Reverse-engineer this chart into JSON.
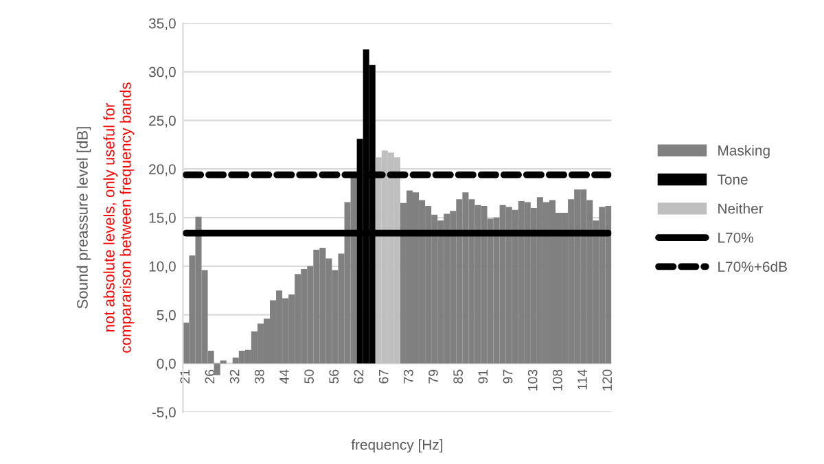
{
  "chart_data": {
    "type": "bar",
    "xlabel": "frequency [Hz]",
    "ylabel": "Sound preassure level [dB]",
    "annotations": [
      "not absolute levels, only useful for\ncompararison between frequency bands"
    ],
    "categories": [
      "21",
      null,
      null,
      null,
      "26",
      null,
      null,
      null,
      "32",
      null,
      null,
      null,
      "38",
      null,
      null,
      null,
      "44",
      null,
      null,
      null,
      "50",
      null,
      null,
      null,
      "56",
      null,
      null,
      null,
      "62",
      null,
      null,
      null,
      "67",
      null,
      null,
      null,
      "73",
      null,
      null,
      null,
      "79",
      null,
      null,
      null,
      "85",
      null,
      null,
      null,
      "91",
      null,
      null,
      null,
      "97",
      null,
      null,
      null,
      "103",
      null,
      null,
      null,
      "108",
      null,
      null,
      null,
      "114",
      null,
      null,
      null,
      "120"
    ],
    "series": [
      {
        "name": "Masking",
        "color": "#808080",
        "values": [
          4.2,
          11.1,
          15.1,
          9.6,
          1.3,
          -1.2,
          0.3,
          null,
          0.6,
          1.3,
          1.4,
          3.3,
          4.1,
          4.6,
          6.5,
          7.5,
          6.7,
          7.1,
          9.2,
          9.7,
          10.0,
          11.7,
          11.9,
          10.8,
          9.6,
          11.3,
          16.6,
          19.3,
          null,
          null,
          null,
          null,
          null,
          null,
          null,
          16.5,
          17.8,
          17.6,
          16.8,
          16.2,
          15.3,
          14.7,
          15.4,
          15.7,
          16.9,
          17.6,
          16.9,
          16.3,
          16.2,
          14.9,
          15.0,
          16.3,
          16.1,
          15.8,
          16.7,
          16.6,
          16.0,
          17.1,
          16.6,
          16.8,
          15.5,
          15.5,
          16.9,
          17.9,
          17.9,
          16.8,
          14.7,
          16.1,
          16.2
        ]
      },
      {
        "name": "Tone",
        "color": "#000000",
        "values": [
          null,
          null,
          null,
          null,
          null,
          null,
          null,
          null,
          null,
          null,
          null,
          null,
          null,
          null,
          null,
          null,
          null,
          null,
          null,
          null,
          null,
          null,
          null,
          null,
          null,
          null,
          null,
          null,
          23.1,
          32.3,
          30.7,
          null,
          null,
          null,
          null,
          null,
          null,
          null,
          null,
          null,
          null,
          null,
          null,
          null,
          null,
          null,
          null,
          null,
          null,
          null,
          null,
          null,
          null,
          null,
          null,
          null,
          null,
          null,
          null,
          null,
          null,
          null,
          null,
          null,
          null,
          null,
          null,
          null,
          null
        ]
      },
      {
        "name": "Neither",
        "color": "#bfbfbf",
        "values": [
          null,
          null,
          null,
          null,
          null,
          null,
          null,
          null,
          null,
          null,
          null,
          null,
          null,
          null,
          null,
          null,
          null,
          null,
          null,
          null,
          null,
          null,
          null,
          null,
          null,
          null,
          null,
          null,
          null,
          null,
          null,
          21.2,
          21.9,
          21.7,
          21.2,
          null,
          null,
          null,
          null,
          null,
          null,
          null,
          null,
          null,
          null,
          null,
          null,
          null,
          null,
          null,
          null,
          null,
          null,
          null,
          null,
          null,
          null,
          null,
          null,
          null,
          null,
          null,
          null,
          null,
          null,
          null,
          null,
          null,
          null
        ]
      },
      {
        "name": "L70%",
        "type": "line",
        "line_style": "solid",
        "color": "#000000",
        "values": [
          13.4,
          13.4,
          13.4,
          13.4,
          13.4,
          13.4,
          13.4,
          13.4,
          13.4,
          13.4,
          13.4,
          13.4,
          13.4,
          13.4,
          13.4,
          13.4,
          13.4,
          13.4,
          13.4,
          13.4,
          13.4,
          13.4,
          13.4,
          13.4,
          13.4,
          13.4,
          13.4,
          13.4,
          13.4,
          13.4,
          13.4,
          13.4,
          13.4,
          13.4,
          13.4,
          13.4,
          13.4,
          13.4,
          13.4,
          13.4,
          13.4,
          13.4,
          13.4,
          13.4,
          13.4,
          13.4,
          13.4,
          13.4,
          13.4,
          13.4,
          13.4,
          13.4,
          13.4,
          13.4,
          13.4,
          13.4,
          13.4,
          13.4,
          13.4,
          13.4,
          13.4,
          13.4,
          13.4,
          13.4,
          13.4,
          13.4,
          13.4,
          13.4,
          13.4
        ]
      },
      {
        "name": "L70%+6dB",
        "type": "line",
        "line_style": "dashed",
        "color": "#000000",
        "values": [
          19.4,
          19.4,
          19.4,
          19.4,
          19.4,
          19.4,
          19.4,
          19.4,
          19.4,
          19.4,
          19.4,
          19.4,
          19.4,
          19.4,
          19.4,
          19.4,
          19.4,
          19.4,
          19.4,
          19.4,
          19.4,
          19.4,
          19.4,
          19.4,
          19.4,
          19.4,
          19.4,
          19.4,
          19.4,
          19.4,
          19.4,
          19.4,
          19.4,
          19.4,
          19.4,
          19.4,
          19.4,
          19.4,
          19.4,
          19.4,
          19.4,
          19.4,
          19.4,
          19.4,
          19.4,
          19.4,
          19.4,
          19.4,
          19.4,
          19.4,
          19.4,
          19.4,
          19.4,
          19.4,
          19.4,
          19.4,
          19.4,
          19.4,
          19.4,
          19.4,
          19.4,
          19.4,
          19.4,
          19.4,
          19.4,
          19.4,
          19.4,
          19.4,
          19.4
        ]
      }
    ],
    "ylim": [
      -5,
      35
    ],
    "yticks": [
      {
        "value": -5,
        "label": "-5,0"
      },
      {
        "value": 0,
        "label": "0,0"
      },
      {
        "value": 5,
        "label": "5,0"
      },
      {
        "value": 10,
        "label": "10,0"
      },
      {
        "value": 15,
        "label": "15,0"
      },
      {
        "value": 20,
        "label": "20,0"
      },
      {
        "value": 25,
        "label": "25,0"
      },
      {
        "value": 30,
        "label": "30,0"
      },
      {
        "value": 35,
        "label": "35,0"
      }
    ],
    "grid": "y",
    "legend": "right"
  }
}
